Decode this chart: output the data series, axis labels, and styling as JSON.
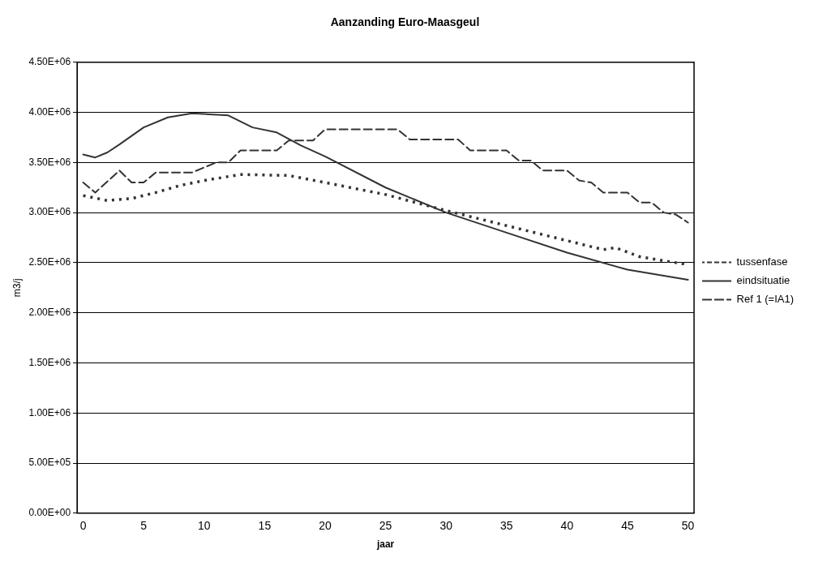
{
  "chart_data": {
    "type": "line",
    "title": "Aanzanding Euro-Maasgeul",
    "xlabel": "jaar",
    "ylabel": "m3/j",
    "xlim": [
      -0.5,
      50.5
    ],
    "xticks": [
      0,
      5,
      10,
      15,
      20,
      25,
      30,
      35,
      40,
      45,
      50
    ],
    "ylim": [
      0,
      4500000
    ],
    "yticks": [
      {
        "value": 0,
        "label": "0.00E+00"
      },
      {
        "value": 500000,
        "label": "5.00E+05"
      },
      {
        "value": 1000000,
        "label": "1.00E+06"
      },
      {
        "value": 1500000,
        "label": "1.50E+06"
      },
      {
        "value": 2000000,
        "label": "2.00E+06"
      },
      {
        "value": 2500000,
        "label": "2.50E+06"
      },
      {
        "value": 3000000,
        "label": "3.00E+06"
      },
      {
        "value": 3500000,
        "label": "3.50E+06"
      },
      {
        "value": 4000000,
        "label": "4.00E+06"
      },
      {
        "value": 4500000,
        "label": "4.50E+06"
      }
    ],
    "grid": "y",
    "legend": "right",
    "marker": "none",
    "series": [
      {
        "name": "tussenfase",
        "color": "#333333",
        "line_style": "dotted",
        "x": [
          0,
          2,
          4,
          6,
          8,
          10,
          13,
          17,
          20,
          25,
          30,
          35,
          40,
          43,
          44,
          46,
          50
        ],
        "values": [
          3170000,
          3120000,
          3140000,
          3200000,
          3270000,
          3320000,
          3380000,
          3370000,
          3300000,
          3180000,
          3020000,
          2870000,
          2720000,
          2630000,
          2650000,
          2560000,
          2480000
        ]
      },
      {
        "name": "eindsituatie",
        "color": "#333333",
        "line_style": "solid",
        "x": [
          0,
          1,
          2,
          3,
          5,
          7,
          9,
          12,
          14,
          16,
          18,
          20,
          25,
          30,
          35,
          40,
          45,
          50
        ],
        "values": [
          3580000,
          3550000,
          3600000,
          3680000,
          3850000,
          3950000,
          3990000,
          3970000,
          3850000,
          3800000,
          3670000,
          3560000,
          3250000,
          3000000,
          2800000,
          2600000,
          2430000,
          2330000
        ]
      },
      {
        "name": "Ref 1 (=IA1)",
        "color": "#333333",
        "line_style": "dashed",
        "x": [
          0,
          1,
          3,
          4,
          5,
          6,
          9,
          10,
          11,
          12,
          13,
          16,
          17,
          19,
          20,
          26,
          27,
          31,
          32,
          35,
          36,
          37,
          38,
          40,
          41,
          42,
          43,
          45,
          46,
          47,
          48,
          49,
          50
        ],
        "values": [
          3300000,
          3200000,
          3420000,
          3300000,
          3300000,
          3400000,
          3400000,
          3450000,
          3500000,
          3500000,
          3620000,
          3620000,
          3720000,
          3720000,
          3830000,
          3830000,
          3730000,
          3730000,
          3620000,
          3620000,
          3520000,
          3520000,
          3420000,
          3420000,
          3320000,
          3300000,
          3200000,
          3200000,
          3100000,
          3100000,
          3000000,
          2980000,
          2900000
        ]
      }
    ]
  }
}
